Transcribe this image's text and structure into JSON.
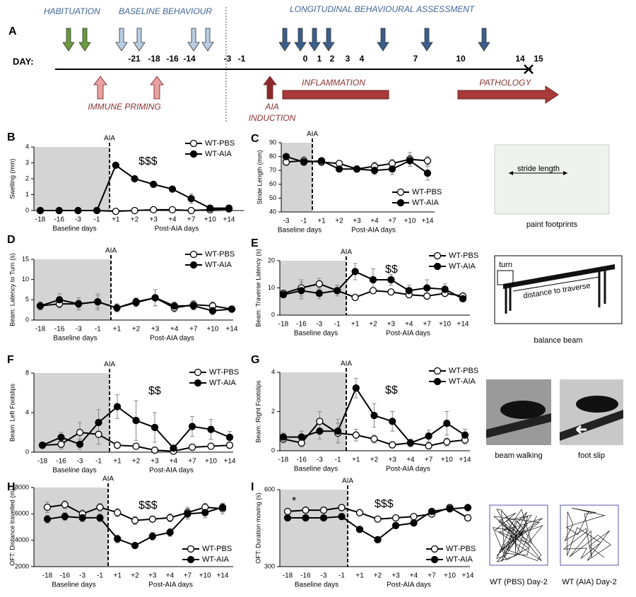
{
  "panel_a": {
    "label": "A",
    "phases": [
      "HABITUATION",
      "BASELINE BEHAVIOUR",
      "LONGITUDINAL BEHAVIOURAL ASSESSMENT"
    ],
    "day_title": "DAY:",
    "days": [
      -21,
      -18,
      -16,
      -14,
      -3,
      -1,
      0,
      1,
      2,
      3,
      4,
      7,
      10,
      14,
      15
    ],
    "events": [
      "IMMUNE PRIMING",
      "AIA",
      "INDUCTION",
      "INFLAMMATION",
      "PATHOLOGY"
    ]
  },
  "chart_data": [
    {
      "type": "line",
      "label": "B",
      "ylabel": "Swelling (mm)",
      "event_label": "AIA",
      "baseline_label": "Baseline days",
      "post_label": "Post-AIA days",
      "categories": [
        "-18",
        "-16",
        "-3",
        "-1",
        "+1",
        "+2",
        "+3",
        "+4",
        "+7",
        "+10",
        "+14"
      ],
      "ylim": [
        0,
        4
      ],
      "yticks": [
        0,
        1,
        2,
        3,
        4
      ],
      "annotations": [
        "$$$"
      ],
      "series": [
        {
          "name": "WT-PBS",
          "color": "#000000",
          "marker_fill": "#ffffff",
          "values": [
            0,
            0,
            0,
            0,
            -0.05,
            0,
            0.05,
            0.05,
            0,
            0.05,
            0.1
          ],
          "errors": [
            0.05,
            0.05,
            0.05,
            0.05,
            0.05,
            0.05,
            0.05,
            0.05,
            0.05,
            0.05,
            0.05
          ]
        },
        {
          "name": "WT-AIA",
          "color": "#000000",
          "marker_fill": "#000000",
          "values": [
            0,
            0,
            0,
            0,
            2.85,
            2.0,
            1.65,
            1.35,
            0.75,
            0.15,
            0.15
          ],
          "errors": [
            0.05,
            0.05,
            0.05,
            0.05,
            0.1,
            0.1,
            0.1,
            0.1,
            0.3,
            0.1,
            0.1
          ]
        }
      ]
    },
    {
      "type": "line",
      "label": "C",
      "ylabel": "Stride Length (mm)",
      "event_label": "AIA",
      "baseline_label": "Baseline days",
      "post_label": "Post-AIA days",
      "categories": [
        "-3",
        "-1",
        "+1",
        "+2",
        "+3",
        "+4",
        "+7",
        "+10",
        "+14"
      ],
      "ylim": [
        40,
        90
      ],
      "yticks": [
        40,
        50,
        60,
        70,
        80,
        90
      ],
      "annotations": [],
      "series": [
        {
          "name": "WT-PBS",
          "color": "#000000",
          "marker_fill": "#ffffff",
          "values": [
            76,
            77,
            76,
            75,
            71,
            73,
            75,
            78,
            77
          ],
          "errors": [
            2,
            3,
            2,
            2,
            2,
            3,
            3,
            5,
            3
          ]
        },
        {
          "name": "WT-AIA",
          "color": "#000000",
          "marker_fill": "#000000",
          "values": [
            80,
            76,
            77,
            71,
            71,
            70,
            71,
            77,
            68
          ],
          "errors": [
            2,
            2,
            2,
            2,
            2,
            3,
            4,
            4,
            5
          ]
        }
      ]
    },
    {
      "type": "line",
      "label": "D",
      "ylabel": "Beam: Latency to Turn (s)",
      "event_label": "AIA",
      "baseline_label": "Baseline days",
      "post_label": "Post-AIA days",
      "categories": [
        "-18",
        "-16",
        "-3",
        "-1",
        "+1",
        "+2",
        "+3",
        "+4",
        "+7",
        "+10",
        "+14"
      ],
      "ylim": [
        0,
        15
      ],
      "yticks": [
        0,
        5,
        10,
        15
      ],
      "annotations": [],
      "series": [
        {
          "name": "WT-PBS",
          "color": "#000000",
          "marker_fill": "#ffffff",
          "values": [
            3.5,
            4,
            4,
            4.5,
            3,
            4.5,
            5.5,
            3,
            3.8,
            3.5,
            2.7
          ],
          "errors": [
            1,
            1,
            1.5,
            2,
            1,
            1,
            2,
            1,
            1,
            1,
            0.5
          ]
        },
        {
          "name": "WT-AIA",
          "color": "#000000",
          "marker_fill": "#000000",
          "values": [
            3.5,
            5,
            4,
            4.5,
            3,
            4.3,
            5.5,
            3.5,
            3.5,
            2.3,
            2.7
          ],
          "errors": [
            1,
            1.5,
            1,
            1.5,
            1,
            1,
            2,
            1,
            1,
            1,
            0.5
          ]
        }
      ]
    },
    {
      "type": "line",
      "label": "E",
      "ylabel": "Beam: Traverse Latency (s)",
      "event_label": "AIA",
      "baseline_label": "Baseline days",
      "post_label": "Post-AIA days",
      "categories": [
        "-18",
        "-16",
        "-3",
        "-1",
        "+1",
        "+2",
        "+3",
        "+4",
        "+7",
        "+10",
        "+14"
      ],
      "ylim": [
        0,
        20
      ],
      "yticks": [
        0,
        10,
        20
      ],
      "annotations": [
        "$$"
      ],
      "series": [
        {
          "name": "WT-PBS",
          "color": "#000000",
          "marker_fill": "#ffffff",
          "values": [
            8,
            10,
            11.5,
            9,
            6.5,
            9,
            8.5,
            7.5,
            7,
            8,
            7
          ],
          "errors": [
            1,
            3,
            2,
            2,
            1,
            1,
            1,
            1,
            1,
            1,
            1
          ]
        },
        {
          "name": "WT-AIA",
          "color": "#000000",
          "marker_fill": "#000000",
          "values": [
            7.5,
            9,
            8,
            9,
            16,
            13,
            13,
            9,
            10,
            9.5,
            6
          ],
          "errors": [
            1,
            3,
            2,
            2,
            3,
            4,
            2,
            2,
            3,
            2,
            1
          ]
        }
      ]
    },
    {
      "type": "line",
      "label": "F",
      "ylabel": "Beam: Left Footslips",
      "event_label": "AIA",
      "baseline_label": "Baseline days",
      "post_label": "Post-AIA days",
      "categories": [
        "-18",
        "-16",
        "-3",
        "-1",
        "+1",
        "+2",
        "+3",
        "+4",
        "+7",
        "+10",
        "+14"
      ],
      "ylim": [
        0,
        8
      ],
      "yticks": [
        0,
        4,
        8
      ],
      "annotations": [
        "$$"
      ],
      "series": [
        {
          "name": "WT-PBS",
          "color": "#000000",
          "marker_fill": "#ffffff",
          "values": [
            0.7,
            0.8,
            2,
            1.8,
            0.7,
            0.6,
            0.2,
            0.1,
            0.5,
            0.6,
            0.7
          ],
          "errors": [
            0.2,
            0.5,
            1,
            1,
            0.3,
            0.3,
            0.2,
            0.1,
            0.3,
            0.3,
            0.3
          ]
        },
        {
          "name": "WT-AIA",
          "color": "#000000",
          "marker_fill": "#000000",
          "values": [
            0.7,
            1.5,
            0.8,
            3,
            4.6,
            3.2,
            2.5,
            0.4,
            2.6,
            2.3,
            1.5
          ],
          "errors": [
            0.2,
            0.5,
            0.5,
            1.3,
            1.2,
            2,
            1.5,
            0.3,
            1,
            1,
            0.6
          ]
        }
      ]
    },
    {
      "type": "line",
      "label": "G",
      "ylabel": "Beam: Right Footslips",
      "event_label": "AIA",
      "baseline_label": "Baseline days",
      "post_label": "Post-AIA days",
      "categories": [
        "-18",
        "-16",
        "-3",
        "-1",
        "+1",
        "+2",
        "+3",
        "+4",
        "+7",
        "+10",
        "+14"
      ],
      "ylim": [
        0,
        4
      ],
      "yticks": [
        0,
        2,
        4
      ],
      "annotations": [
        "$$"
      ],
      "series": [
        {
          "name": "WT-PBS",
          "color": "#000000",
          "marker_fill": "#ffffff",
          "values": [
            0.6,
            0.4,
            1.5,
            0.9,
            0.8,
            0.6,
            0.3,
            0.4,
            0.25,
            0.45,
            0.55
          ],
          "errors": [
            0.2,
            0.2,
            0.5,
            0.5,
            0.3,
            0.2,
            0.1,
            0.1,
            0.1,
            0.2,
            0.2
          ]
        },
        {
          "name": "WT-AIA",
          "color": "#000000",
          "marker_fill": "#000000",
          "values": [
            0.7,
            0.7,
            1,
            1,
            3.2,
            1.8,
            1.5,
            0.4,
            0.75,
            1.4,
            0.8
          ],
          "errors": [
            0.2,
            0.3,
            0.4,
            0.6,
            0.5,
            0.6,
            0.5,
            0.2,
            0.3,
            0.6,
            0.3
          ]
        }
      ]
    },
    {
      "type": "line",
      "label": "H",
      "ylabel": "OFT: Distance travelled (m)",
      "event_label": "AIA",
      "baseline_label": "Baseline days",
      "post_label": "Post-AIA days",
      "categories": [
        "-18",
        "-16",
        "-3",
        "-1",
        "+1",
        "+2",
        "+3",
        "+4",
        "+7",
        "+10",
        "+14"
      ],
      "ylim": [
        2000,
        8000
      ],
      "yticks": [
        2000,
        4000,
        6000,
        8000
      ],
      "annotations": [
        "$$$"
      ],
      "series": [
        {
          "name": "WT-PBS",
          "color": "#000000",
          "marker_fill": "#ffffff",
          "values": [
            6500,
            6700,
            6000,
            6500,
            6100,
            5500,
            5600,
            5700,
            6100,
            6500,
            6400
          ],
          "errors": [
            400,
            300,
            300,
            300,
            300,
            300,
            200,
            300,
            400,
            300,
            400
          ]
        },
        {
          "name": "WT-AIA",
          "color": "#000000",
          "marker_fill": "#000000",
          "values": [
            5600,
            5800,
            5700,
            5700,
            4100,
            3600,
            4300,
            4600,
            6000,
            6100,
            6500
          ],
          "errors": [
            300,
            300,
            300,
            300,
            300,
            200,
            300,
            300,
            400,
            400,
            300
          ]
        }
      ]
    },
    {
      "type": "line",
      "label": "I",
      "ylabel": "OFT: Duration moving (s)",
      "event_label": "AIA",
      "baseline_label": "Baseline days",
      "post_label": "Post-AIA days",
      "categories": [
        "-18",
        "-16",
        "-3",
        "-1",
        "+1",
        "+2",
        "+3",
        "+4",
        "+7",
        "+10",
        "+14"
      ],
      "ylim": [
        300,
        600
      ],
      "yticks": [
        300,
        600
      ],
      "annotations": [
        "*",
        "$$$"
      ],
      "series": [
        {
          "name": "WT-PBS",
          "color": "#000000",
          "marker_fill": "#ffffff",
          "values": [
            515,
            520,
            520,
            530,
            510,
            485,
            490,
            495,
            505,
            530,
            490
          ],
          "errors": [
            8,
            8,
            8,
            8,
            8,
            8,
            8,
            10,
            10,
            8,
            12
          ]
        },
        {
          "name": "WT-AIA",
          "color": "#000000",
          "marker_fill": "#000000",
          "values": [
            490,
            490,
            490,
            495,
            445,
            405,
            460,
            470,
            515,
            525,
            530
          ],
          "errors": [
            8,
            8,
            8,
            8,
            10,
            12,
            12,
            10,
            10,
            8,
            8
          ]
        }
      ]
    }
  ],
  "images": {
    "footprints": {
      "label": "stride length",
      "caption": "paint footprints"
    },
    "beam": {
      "turn": "turn",
      "label": "distance to traverse",
      "caption": "balance beam"
    },
    "photos": {
      "left": "beam walking",
      "right": "foot slip"
    },
    "tracks": {
      "left": "WT (PBS) Day-2",
      "right": "WT (AIA) Day-2"
    }
  }
}
